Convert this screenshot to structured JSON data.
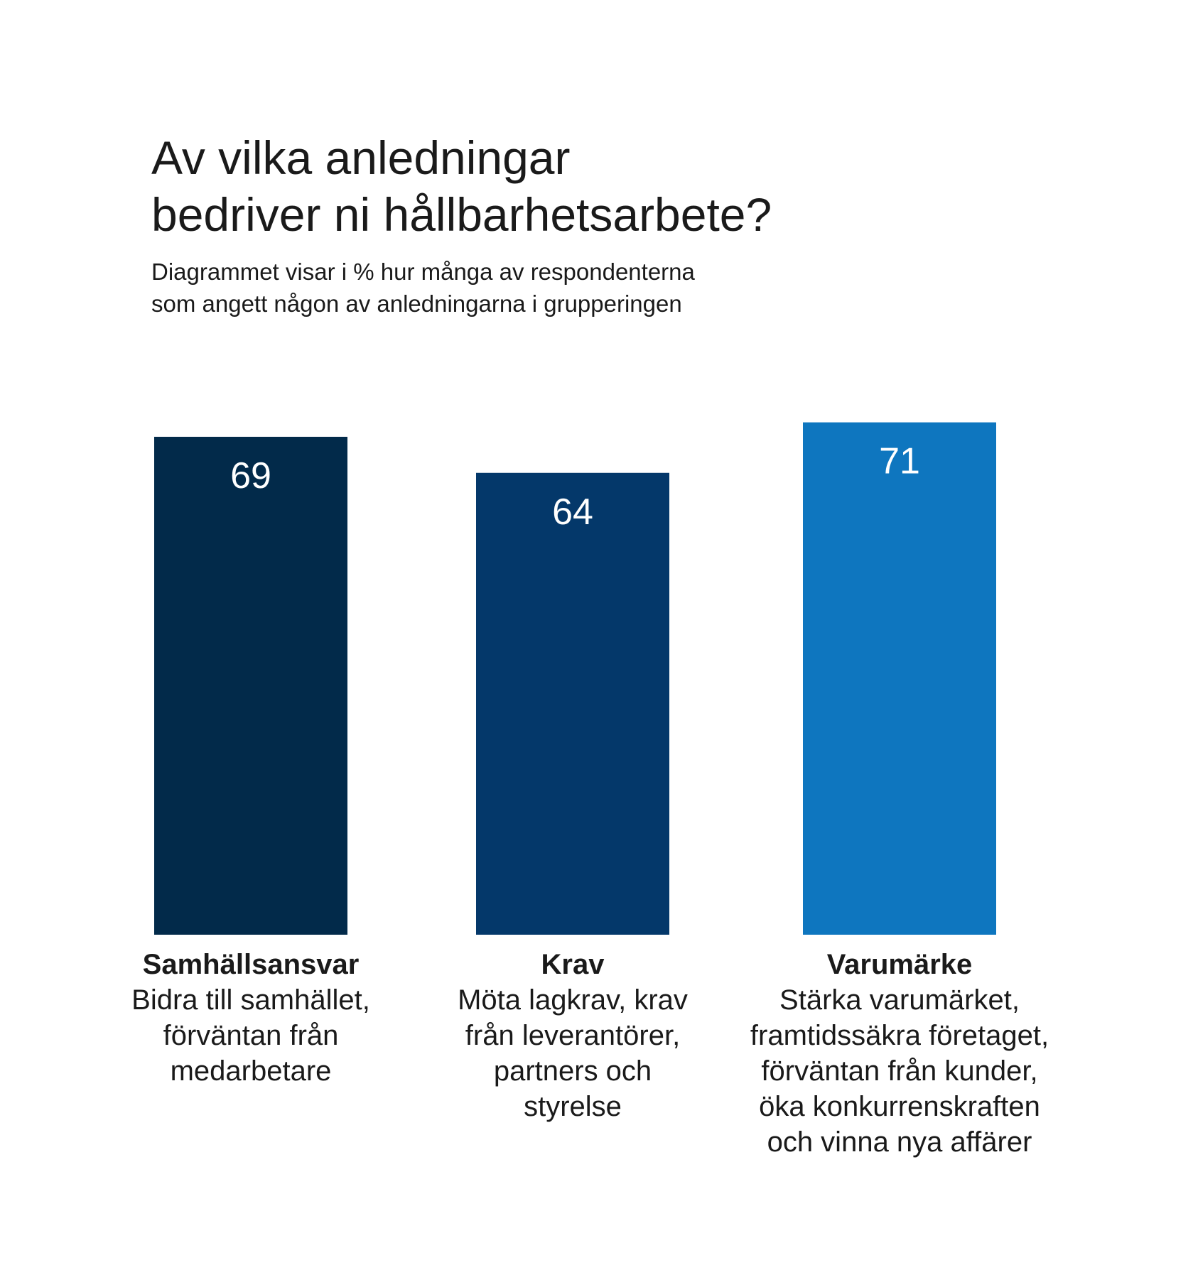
{
  "title_lines": [
    "Av vilka anledningar",
    "bedriver ni hållbarhetsarbete?"
  ],
  "subtitle_lines": [
    "Diagrammet visar i % hur många av respondenterna",
    "som angett någon av anledningarna i grupperingen"
  ],
  "colors": {
    "bar_1": "#022a4a",
    "bar_2": "#04386a",
    "bar_3": "#0e76bf",
    "value_label": "#ffffff",
    "text": "#1a1a1a"
  },
  "chart_data": {
    "type": "bar",
    "categories": [
      "Samhällsansvar",
      "Krav",
      "Varumärke"
    ],
    "values": [
      69,
      64,
      71
    ],
    "descriptions": [
      [
        "Bidra till samhället,",
        "förväntan från",
        "medarbetare"
      ],
      [
        "Möta lagkrav, krav",
        "från leverantörer,",
        "partners och",
        "styrelse"
      ],
      [
        "Stärka varumärket,",
        "framtidssäkra företaget,",
        "förväntan från kunder,",
        "öka konkurrenskraften",
        "och vinna nya affärer"
      ]
    ],
    "value_labels": [
      "69",
      "64",
      "71"
    ],
    "ylim": [
      0,
      100
    ],
    "grid": false,
    "legend": "none"
  }
}
